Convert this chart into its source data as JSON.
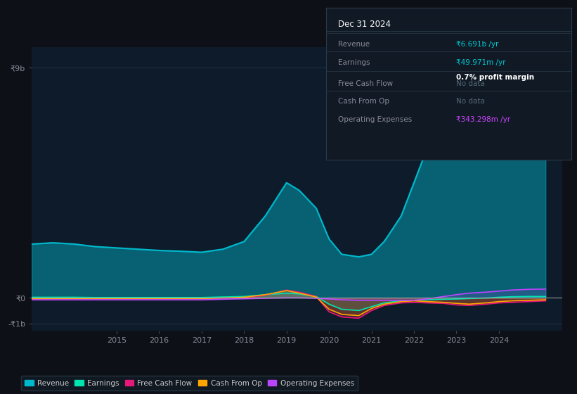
{
  "bg_color": "#0d1117",
  "plot_bg_color": "#0d1b2a",
  "grid_color": "#253545",
  "title_box": {
    "date": "Dec 31 2024",
    "rows": [
      {
        "label": "Revenue",
        "value": "₹6.691b /yr",
        "value_color": "#00c8d4",
        "extra": null
      },
      {
        "label": "Earnings",
        "value": "₹49.971m /yr",
        "value_color": "#00c8d4",
        "extra": "0.7% profit margin"
      },
      {
        "label": "Free Cash Flow",
        "value": "No data",
        "value_color": "#556677",
        "extra": null
      },
      {
        "label": "Cash From Op",
        "value": "No data",
        "value_color": "#556677",
        "extra": null
      },
      {
        "label": "Operating Expenses",
        "value": "₹343.298m /yr",
        "value_color": "#cc44ff",
        "extra": null
      }
    ],
    "bg_color": "#111a24",
    "border_color": "#2a3a4a",
    "text_color": "#888899",
    "title_color": "#ffffff"
  },
  "years": [
    2013,
    2013.5,
    2014,
    2014.5,
    2015,
    2015.5,
    2016,
    2016.5,
    2017,
    2017.5,
    2018,
    2018.5,
    2019,
    2019.3,
    2019.7,
    2020,
    2020.3,
    2020.7,
    2021,
    2021.3,
    2021.7,
    2022,
    2022.3,
    2022.7,
    2023,
    2023.3,
    2023.7,
    2024,
    2024.3,
    2024.7,
    2025.1
  ],
  "revenue": [
    2.1,
    2.15,
    2.1,
    2.0,
    1.95,
    1.9,
    1.85,
    1.82,
    1.78,
    1.9,
    2.2,
    3.2,
    4.5,
    4.2,
    3.5,
    2.3,
    1.7,
    1.6,
    1.7,
    2.2,
    3.2,
    4.5,
    5.8,
    7.2,
    8.6,
    8.2,
    7.6,
    7.2,
    6.8,
    6.7,
    6.7
  ],
  "earnings": [
    0.02,
    0.02,
    0.02,
    0.01,
    0.01,
    0.01,
    0.01,
    0.01,
    0.01,
    0.03,
    0.05,
    0.12,
    0.18,
    0.15,
    0.05,
    -0.25,
    -0.45,
    -0.5,
    -0.35,
    -0.2,
    -0.12,
    -0.1,
    -0.08,
    -0.06,
    -0.05,
    -0.03,
    -0.01,
    0.02,
    0.04,
    0.05,
    0.05
  ],
  "free_cash_flow": [
    -0.05,
    -0.04,
    -0.04,
    -0.04,
    -0.04,
    -0.04,
    -0.04,
    -0.04,
    -0.04,
    -0.02,
    0.0,
    0.1,
    0.3,
    0.22,
    0.05,
    -0.55,
    -0.75,
    -0.8,
    -0.5,
    -0.3,
    -0.2,
    -0.18,
    -0.2,
    -0.22,
    -0.28,
    -0.3,
    -0.25,
    -0.2,
    -0.18,
    -0.15,
    -0.12
  ],
  "cash_from_op": [
    -0.04,
    -0.03,
    -0.03,
    -0.03,
    -0.03,
    -0.03,
    -0.03,
    -0.03,
    -0.03,
    -0.01,
    0.02,
    0.12,
    0.28,
    0.18,
    0.03,
    -0.45,
    -0.65,
    -0.7,
    -0.42,
    -0.25,
    -0.15,
    -0.12,
    -0.15,
    -0.18,
    -0.22,
    -0.25,
    -0.2,
    -0.15,
    -0.12,
    -0.1,
    -0.08
  ],
  "operating_expenses": [
    -0.08,
    -0.08,
    -0.08,
    -0.08,
    -0.08,
    -0.08,
    -0.08,
    -0.08,
    -0.08,
    -0.06,
    -0.04,
    -0.02,
    0.0,
    0.0,
    -0.02,
    -0.05,
    -0.08,
    -0.1,
    -0.1,
    -0.1,
    -0.1,
    -0.1,
    -0.05,
    0.05,
    0.12,
    0.18,
    0.22,
    0.26,
    0.3,
    0.33,
    0.34
  ],
  "colors": {
    "revenue": "#00b8cc",
    "earnings": "#00e5b0",
    "free_cash_flow": "#e8187a",
    "cash_from_op": "#ffa500",
    "operating_expenses": "#bb44ff"
  },
  "ylim": [
    -1.3,
    9.8
  ],
  "yticks": [
    -1.0,
    0.0,
    9.0
  ],
  "ytick_labels": [
    "-₹1b",
    "₹0",
    "₹9b"
  ],
  "xlim": [
    2013.0,
    2025.5
  ],
  "xticks": [
    2015,
    2016,
    2017,
    2018,
    2019,
    2020,
    2021,
    2022,
    2023,
    2024
  ],
  "legend_items": [
    {
      "label": "Revenue",
      "color": "#00b8cc"
    },
    {
      "label": "Earnings",
      "color": "#00e5b0"
    },
    {
      "label": "Free Cash Flow",
      "color": "#e8187a"
    },
    {
      "label": "Cash From Op",
      "color": "#ffa500"
    },
    {
      "label": "Operating Expenses",
      "color": "#bb44ff"
    }
  ]
}
